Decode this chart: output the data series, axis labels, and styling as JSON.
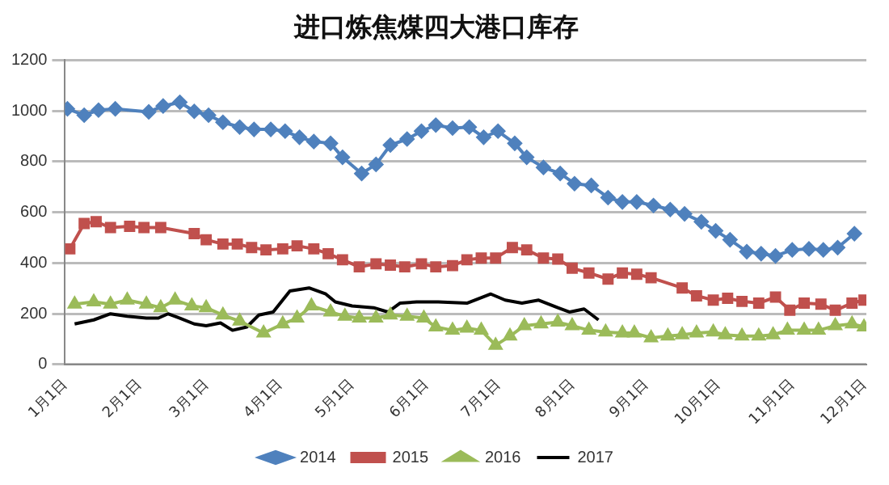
{
  "chart_data": {
    "type": "line",
    "title": "进口炼焦煤四大港口库存",
    "xlim": [
      "--01-01",
      "--12-02"
    ],
    "xticks": [
      {
        "value": "--01-01",
        "label": "1月1日"
      },
      {
        "value": "--02-01",
        "label": "2月1日"
      },
      {
        "value": "--03-01",
        "label": "3月1日"
      },
      {
        "value": "--04-01",
        "label": "4月1日"
      },
      {
        "value": "--05-01",
        "label": "5月1日"
      },
      {
        "value": "--06-01",
        "label": "6月1日"
      },
      {
        "value": "--07-01",
        "label": "7月1日"
      },
      {
        "value": "--08-01",
        "label": "8月1日"
      },
      {
        "value": "--09-01",
        "label": "9月1日"
      },
      {
        "value": "--10-01",
        "label": "10月1日"
      },
      {
        "value": "--11-01",
        "label": "11月1日"
      },
      {
        "value": "--12-01",
        "label": "12月1日"
      }
    ],
    "ylim": [
      0,
      1200
    ],
    "yticks": [
      0,
      200,
      400,
      600,
      800,
      1000,
      1200
    ],
    "grid": "y",
    "legend": "bottom",
    "line_style": "solid",
    "series": [
      {
        "name": "2014",
        "color": "#4f81bd",
        "marker": "diamond",
        "x": [
          "--01-02",
          "--01-09",
          "--01-15",
          "--01-22",
          "--02-05",
          "--02-11",
          "--02-18",
          "--02-24",
          "--03-02",
          "--03-08",
          "--03-15",
          "--03-21",
          "--03-28",
          "--04-03",
          "--04-09",
          "--04-15",
          "--04-22",
          "--04-27",
          "--05-05",
          "--05-11",
          "--05-17",
          "--05-24",
          "--05-30",
          "--06-05",
          "--06-12",
          "--06-19",
          "--06-25",
          "--07-01",
          "--07-08",
          "--07-13",
          "--07-20",
          "--07-27",
          "--08-02",
          "--08-09",
          "--08-16",
          "--08-22",
          "--08-28",
          "--09-04",
          "--09-11",
          "--09-17",
          "--09-24",
          "--09-30",
          "--10-06",
          "--10-13",
          "--10-19",
          "--10-25",
          "--11-01",
          "--11-08",
          "--11-14",
          "--11-20",
          "--11-27"
        ],
        "values": [
          1008,
          983,
          1003,
          1008,
          996,
          1019,
          1034,
          998,
          983,
          955,
          936,
          927,
          927,
          920,
          896,
          879,
          872,
          817,
          753,
          789,
          865,
          889,
          920,
          944,
          932,
          936,
          896,
          920,
          872,
          817,
          777,
          753,
          713,
          706,
          658,
          641,
          641,
          627,
          611,
          594,
          563,
          527,
          492,
          445,
          437,
          428,
          452,
          456,
          452,
          461,
          516
        ]
      },
      {
        "name": "2015",
        "color": "#c0504d",
        "marker": "square",
        "x": [
          "--01-03",
          "--01-09",
          "--01-14",
          "--01-20",
          "--01-28",
          "--02-03",
          "--02-10",
          "--02-24",
          "--03-01",
          "--03-08",
          "--03-14",
          "--03-20",
          "--03-26",
          "--04-02",
          "--04-08",
          "--04-15",
          "--04-21",
          "--04-27",
          "--05-04",
          "--05-11",
          "--05-17",
          "--05-23",
          "--05-30",
          "--06-05",
          "--06-12",
          "--06-18",
          "--06-24",
          "--06-30",
          "--07-07",
          "--07-13",
          "--07-20",
          "--07-26",
          "--08-01",
          "--08-08",
          "--08-16",
          "--08-22",
          "--08-28",
          "--09-03",
          "--09-16",
          "--09-22",
          "--09-29",
          "--10-05",
          "--10-11",
          "--10-18",
          "--10-25",
          "--10-31",
          "--11-06",
          "--11-13",
          "--11-19",
          "--11-26",
          "--12-01"
        ],
        "values": [
          456,
          556,
          563,
          540,
          545,
          540,
          540,
          516,
          492,
          475,
          475,
          461,
          452,
          456,
          468,
          456,
          437,
          413,
          385,
          397,
          392,
          385,
          397,
          385,
          390,
          413,
          420,
          420,
          461,
          452,
          420,
          416,
          380,
          361,
          337,
          361,
          356,
          342,
          302,
          271,
          254,
          261,
          249,
          242,
          266,
          214,
          242,
          238,
          214,
          242,
          254
        ]
      },
      {
        "name": "2016",
        "color": "#9bbb59",
        "marker": "triangle",
        "x": [
          "--01-05",
          "--01-13",
          "--01-20",
          "--01-27",
          "--02-04",
          "--02-10",
          "--02-16",
          "--02-23",
          "--03-01",
          "--03-08",
          "--03-15",
          "--03-25",
          "--04-02",
          "--04-08",
          "--04-14",
          "--04-22",
          "--04-28",
          "--05-04",
          "--05-11",
          "--05-17",
          "--05-24",
          "--05-31",
          "--06-05",
          "--06-12",
          "--06-18",
          "--06-24",
          "--06-30",
          "--07-06",
          "--07-12",
          "--07-19",
          "--07-26",
          "--08-01",
          "--08-08",
          "--08-15",
          "--08-22",
          "--08-27",
          "--09-03",
          "--09-10",
          "--09-16",
          "--09-22",
          "--09-29",
          "--10-04",
          "--10-11",
          "--10-18",
          "--10-24",
          "--10-30",
          "--11-06",
          "--11-12",
          "--11-19",
          "--11-26",
          "--12-01"
        ],
        "values": [
          238,
          247,
          238,
          254,
          238,
          224,
          254,
          231,
          224,
          195,
          171,
          124,
          160,
          183,
          231,
          207,
          190,
          183,
          183,
          195,
          190,
          183,
          148,
          135,
          143,
          135,
          76,
          112,
          153,
          160,
          167,
          153,
          135,
          128,
          124,
          124,
          105,
          112,
          117,
          124,
          128,
          117,
          112,
          112,
          117,
          135,
          135,
          135,
          153,
          160,
          148
        ]
      },
      {
        "name": "2017",
        "color": "#000000",
        "marker": "none",
        "x": [
          "--01-05",
          "--01-13",
          "--01-20",
          "--01-27",
          "--02-04",
          "--02-09",
          "--02-13",
          "--02-18",
          "--02-24",
          "--03-01",
          "--03-07",
          "--03-12",
          "--03-18",
          "--03-23",
          "--03-29",
          "--04-05",
          "--04-13",
          "--04-20",
          "--04-24",
          "--05-01",
          "--05-10",
          "--05-16",
          "--05-21",
          "--05-28",
          "--06-06",
          "--06-18",
          "--06-28",
          "--07-04",
          "--07-11",
          "--07-18",
          "--07-26",
          "--07-31",
          "--08-06",
          "--08-12"
        ],
        "values": [
          160,
          176,
          200,
          190,
          183,
          183,
          200,
          183,
          160,
          153,
          164,
          135,
          148,
          195,
          207,
          290,
          302,
          278,
          247,
          231,
          224,
          207,
          242,
          247,
          247,
          242,
          278,
          254,
          242,
          254,
          224,
          207,
          219,
          176
        ]
      }
    ]
  }
}
